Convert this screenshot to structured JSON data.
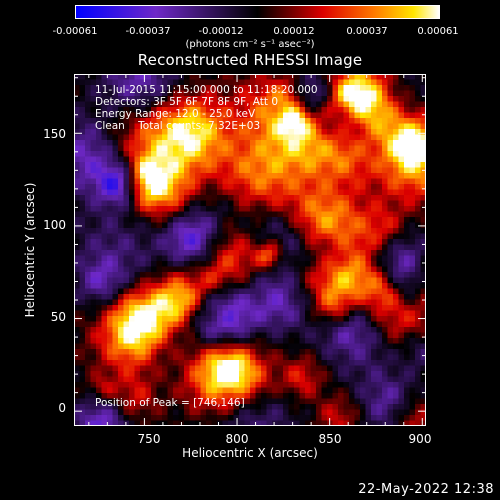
{
  "colorbar": {
    "ticks": [
      "-0.00061",
      "-0.00037",
      "-0.00012",
      "0.00012",
      "0.00037",
      "0.00061"
    ],
    "unit": "(photons cm⁻² s⁻¹ asec⁻²)"
  },
  "chart_data": {
    "type": "heatmap",
    "title": "Reconstructed RHESSI Image",
    "xlabel": "Heliocentric X (arcsec)",
    "ylabel": "Heliocentric Y (arcsec)",
    "xlim": [
      712,
      902
    ],
    "ylim": [
      -8,
      182
    ],
    "xticks": [
      750,
      800,
      850,
      900
    ],
    "yticks": [
      0,
      50,
      100,
      150
    ],
    "colormap": "rhessi-flux",
    "value_range": [
      -0.00061,
      0.00061
    ],
    "annotations": [
      "11-Jul-2015 11:15:00.000 to 11:18:20.000",
      "Detectors: 3F 5F 6F 7F 8F 9F, Att 0",
      "Energy Range: 12.0 - 25.0 keV",
      "Clean    Total counts: 7.32E+03"
    ],
    "peak_label": "Position of Peak = [746,146]",
    "peak": [
      746,
      146
    ]
  },
  "timestamp": "22-May-2022 12:38"
}
